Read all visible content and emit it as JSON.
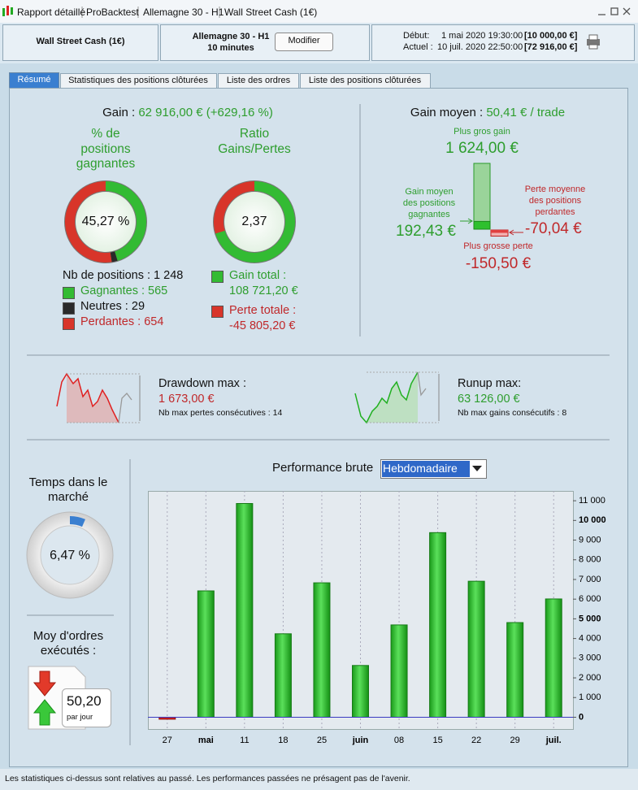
{
  "window": {
    "tabs": [
      "Rapport détaillé",
      "ProBacktest",
      "Allemagne 30 - H1",
      "Wall Street Cash (1€)"
    ]
  },
  "header": {
    "instrument": "Wall Street Cash (1€)",
    "market": "Allemagne 30 - H1",
    "timeframe": "10 minutes",
    "button": "Modifier",
    "start_label": "Début:",
    "start_date": "1 mai 2020 19:30:00",
    "start_capital": "[10 000,00 €]",
    "current_label": "Actuel :",
    "current_date": "10 juil. 2020 22:50:00",
    "current_capital": "[72 916,00 €]"
  },
  "tabs": [
    "Résumé",
    "Statistiques des positions clôturées",
    "Liste des ordres",
    "Liste des positions clôturées"
  ],
  "gain": {
    "label": "Gain :",
    "value": "62 916,00 € (+629,16 %)"
  },
  "win_rate": {
    "title": "% de positions gagnantes",
    "value": "45,27 %"
  },
  "positions": {
    "label": "Nb de positions :",
    "total": {
      "value": 1248,
      "label": "1 248"
    },
    "items": [
      {
        "name": "Gagnantes :",
        "count": 565,
        "color": "#33bb33"
      },
      {
        "name": "Neutres :",
        "count": 29,
        "color": "#2a2a2a"
      },
      {
        "name": "Perdantes :",
        "count": 654,
        "color": "#d8352a"
      }
    ]
  },
  "ratio": {
    "title": "Ratio Gains/Pertes",
    "value": "2,37",
    "gain_label": "Gain total :",
    "gain_total": {
      "value": 108721.2,
      "label": "108 721,20 €"
    },
    "loss_label": "Perte totale :",
    "loss_total": {
      "value": -45805.2,
      "label": "-45 805,20 €"
    }
  },
  "average": {
    "label": "Gain moyen :",
    "value": "50,41 € / trade",
    "max_gain_label": "Plus gros gain",
    "max_gain": {
      "value": 1624,
      "label": "1 624,00 €"
    },
    "avg_win_label": "Gain moyen des positions gagnantes",
    "avg_win": {
      "value": 192.43,
      "label": "192,43 €"
    },
    "avg_loss_label": "Perte moyenne des positions perdantes",
    "avg_loss": {
      "value": -70.04,
      "label": "-70,04 €"
    },
    "max_loss_label": "Plus grosse perte",
    "max_loss": {
      "value": -150.5,
      "label": "-150,50 €"
    }
  },
  "drawdown": {
    "label": "Drawdown max :",
    "value": "1 673,00 €",
    "note": "Nb max pertes consécutives : 14"
  },
  "runup": {
    "label": "Runup max:",
    "value": "63 126,00 €",
    "note": "Nb max gains consécutifs : 8"
  },
  "time_in_market": {
    "label": "Temps dans le marché",
    "value": {
      "value": 6.47,
      "label": "6,47 %"
    }
  },
  "orders": {
    "label": "Moy d'ordres exécutés :",
    "value": "50,20",
    "unit": "par jour"
  },
  "chart_data": {
    "type": "bar",
    "title": "Performance brute",
    "period": "Hebdomadaire",
    "categories": [
      "27",
      "mai",
      "11",
      "18",
      "25",
      "juin",
      "08",
      "15",
      "22",
      "29",
      "juil."
    ],
    "values": [
      -100,
      6420,
      10860,
      4240,
      6830,
      2630,
      4690,
      9380,
      6910,
      4810,
      6010
    ],
    "color": "#22c022",
    "negative_color": "#d02020",
    "ylim": [
      -600,
      11500
    ],
    "yticks": [
      0,
      {
        "value": 1000,
        "label": "1 000"
      },
      {
        "value": 2000,
        "label": "2 000"
      },
      {
        "value": 3000,
        "label": "3 000"
      },
      {
        "value": 4000,
        "label": "4 000"
      },
      {
        "value": 5000,
        "label": "5 000"
      },
      {
        "value": 6000,
        "label": "6 000"
      },
      {
        "value": 7000,
        "label": "7 000"
      },
      {
        "value": 8000,
        "label": "8 000"
      },
      {
        "value": 9000,
        "label": "9 000"
      },
      {
        "value": 10000,
        "label": "10 000"
      },
      {
        "value": 11000,
        "label": "11 000"
      }
    ],
    "grid": true
  },
  "footer": "Les statistiques ci-dessus sont relatives au passé. Les performances passées ne présagent pas de l'avenir."
}
